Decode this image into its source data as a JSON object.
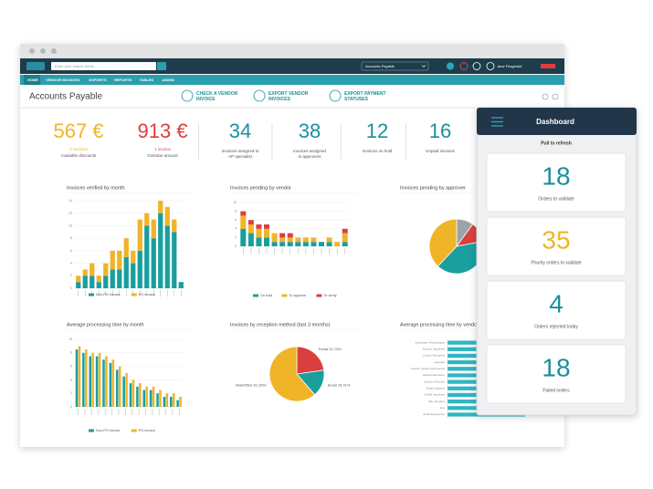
{
  "window": {
    "search_placeholder": "Enter your search terms...",
    "module": "Accounts Payable",
    "user": "Jane Fitzgerald",
    "menu": [
      "HOME",
      "VENDOR INVOICES",
      "EXPORTS",
      "REPORTS",
      "TABLES",
      "ADMIN"
    ]
  },
  "header": {
    "title": "Accounts Payable",
    "actions": [
      [
        "CHECK A VENDOR",
        "INVOICE"
      ],
      [
        "EXPORT VENDOR",
        "INVOICES"
      ],
      [
        "EXPORT PAYMENT",
        "STATUSES"
      ]
    ]
  },
  "kpis": [
    {
      "value": "567 €",
      "sub": "3 invoices",
      "label": "Available discounts",
      "color": "#f0b429"
    },
    {
      "value": "913 €",
      "sub": "1 invoice",
      "label": "Overdue amount",
      "color": "#d93f3f"
    },
    {
      "value": "34",
      "label": "Invoices assigned to AP specialist",
      "color": "#1a8f9c"
    },
    {
      "value": "38",
      "label": "Invoices assigned to approvers",
      "color": "#1a8f9c"
    },
    {
      "value": "12",
      "label": "Invoices on hold",
      "color": "#1a8f9c"
    },
    {
      "value": "16",
      "label": "Unpaid invoices",
      "color": "#1a8f9c"
    }
  ],
  "chart_data": [
    {
      "type": "bar",
      "title": "Invoices verified by month",
      "stacked": true,
      "categories": [
        null,
        null,
        null,
        null,
        null,
        null,
        null,
        null,
        null,
        null,
        null,
        null,
        null,
        null,
        null,
        null
      ],
      "series": [
        {
          "name": "Non-PO invoice",
          "color": "#1a9e9e",
          "values": [
            1,
            2,
            2,
            1,
            2,
            3,
            3,
            5,
            4,
            6,
            10,
            8,
            12,
            10,
            9,
            1
          ]
        },
        {
          "name": "PO invoice",
          "color": "#f0b429",
          "values": [
            1,
            1,
            2,
            1,
            2,
            3,
            3,
            3,
            2,
            5,
            2,
            3,
            2,
            3,
            2,
            0
          ]
        }
      ],
      "ylim": [
        0,
        14
      ],
      "yticks": [
        0,
        2,
        4,
        6,
        8,
        10,
        12,
        14
      ],
      "grid": true
    },
    {
      "type": "bar",
      "title": "Invoices pending by vendor",
      "stacked": true,
      "categories": [
        null,
        null,
        null,
        null,
        null,
        null,
        null,
        null,
        null,
        null,
        null,
        null,
        null,
        null
      ],
      "series": [
        {
          "name": "On hold",
          "color": "#1a9e9e",
          "values": [
            4,
            3,
            2,
            2,
            1,
            1,
            1,
            1,
            1,
            1,
            1,
            1,
            0,
            1
          ]
        },
        {
          "name": "To approve",
          "color": "#f0b429",
          "values": [
            3,
            2,
            2,
            2,
            2,
            1,
            1,
            1,
            1,
            1,
            0,
            1,
            1,
            2
          ]
        },
        {
          "name": "To verify",
          "color": "#d93f3f",
          "values": [
            1,
            1,
            1,
            1,
            0,
            1,
            1,
            0,
            0,
            0,
            0,
            0,
            0,
            1
          ]
        }
      ],
      "ylim": [
        0,
        10
      ],
      "yticks": [
        0,
        2,
        4,
        6,
        8,
        10
      ],
      "grid": true
    },
    {
      "type": "pie",
      "title": "Invoices pending by approver",
      "categories": [
        null,
        null,
        null,
        null
      ],
      "values": [
        10,
        12,
        40,
        38
      ],
      "colors": [
        "#9aa3a8",
        "#d93f3f",
        "#1a9e9e",
        "#f0b429"
      ]
    },
    {
      "type": "bar",
      "title": "Average processing time by month",
      "stacked": false,
      "categories": [
        null,
        null,
        null,
        null,
        null,
        null,
        null,
        null,
        null,
        null,
        null,
        null,
        null,
        null,
        null,
        null
      ],
      "series": [
        {
          "name": "Non-PO invoice",
          "color": "#1a9e9e",
          "values": [
            8.5,
            8,
            7.5,
            7.5,
            7,
            6.5,
            5.5,
            4.5,
            3.5,
            3,
            2.5,
            2.5,
            2,
            1.5,
            1.5,
            1
          ]
        },
        {
          "name": "PO invoice",
          "color": "#f0b429",
          "values": [
            9,
            8.5,
            8,
            8,
            7.5,
            7,
            6,
            5,
            4,
            3.5,
            3,
            3,
            2.5,
            2,
            2,
            1.5
          ]
        }
      ],
      "ylim": [
        0,
        10
      ],
      "yticks": [
        0,
        2,
        4,
        6,
        8,
        10
      ],
      "grid": true
    },
    {
      "type": "pie",
      "title": "Invoices by reception method (last 3 months)",
      "categories": [
        "Portal",
        "Email",
        "Mail/Other"
      ],
      "values": [
        22.73,
        15.91,
        61.36
      ],
      "value_labels": [
        "Portal 22.73%",
        "Email 15.91%",
        "Mail/Other 61.36%"
      ],
      "colors": [
        "#d93f3f",
        "#1a9e9e",
        "#f0b429"
      ]
    },
    {
      "type": "hbar",
      "title": "Average processing time by vendor",
      "categories": [
        "Quickbase Technologies",
        "Fortune Industries",
        "Lumber Payments",
        "Lakeside",
        "Custom Labels International",
        "Global Fabrication",
        "Horizon Partners",
        "Retail Logistics",
        "ACME Industries",
        "Bay Supplies",
        "Eco",
        "Email Enterprises"
      ],
      "values": [
        34,
        33,
        34,
        33,
        35,
        34,
        33,
        34,
        35,
        33,
        34,
        34
      ],
      "color": "#2fb6c1",
      "xlim": [
        0,
        40
      ]
    }
  ],
  "mobile": {
    "title": "Dashboard",
    "refresh": "Pull to refresh",
    "cards": [
      {
        "value": 18,
        "label": "Orders to validate",
        "color": "#1a8f9c"
      },
      {
        "value": 35,
        "label": "Priority orders to validate",
        "color": "#f0b429"
      },
      {
        "value": 4,
        "label": "Orders rejected today",
        "color": "#1a8f9c"
      },
      {
        "value": 18,
        "label": "Failed orders",
        "color": "#1a8f9c"
      }
    ]
  }
}
